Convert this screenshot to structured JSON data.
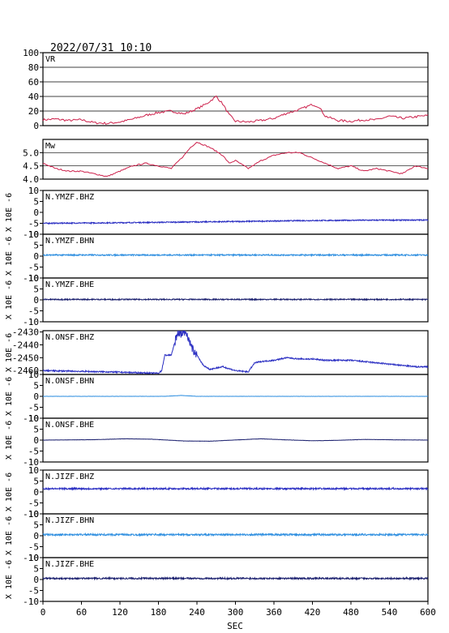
{
  "figure": {
    "timestamp": "2022/07/31 10:10",
    "xlabel": "SEC",
    "seismo_ylabel": "X 10E -6",
    "colors": {
      "vr": "#cc1f4a",
      "mw": "#cc1f4a",
      "blue": "#2a2ec2",
      "light_blue": "#2f8fe0",
      "navy": "#1a1f6e",
      "grid": "#000000"
    }
  },
  "chart_data": [
    {
      "type": "line",
      "label": "VR",
      "ylim": [
        0,
        100
      ],
      "yticks": [
        0,
        20,
        40,
        60,
        80,
        100
      ],
      "grid": true,
      "x": [
        0,
        20,
        40,
        60,
        80,
        100,
        120,
        140,
        160,
        180,
        200,
        220,
        240,
        255,
        270,
        280,
        290,
        300,
        320,
        340,
        360,
        380,
        400,
        420,
        430,
        440,
        460,
        480,
        500,
        520,
        540,
        560,
        580,
        600
      ],
      "values": [
        8,
        9,
        7,
        8,
        4,
        3,
        5,
        9,
        14,
        18,
        20,
        16,
        23,
        30,
        40,
        30,
        15,
        6,
        5,
        7,
        10,
        17,
        22,
        29,
        26,
        13,
        7,
        6,
        8,
        8,
        13,
        10,
        12,
        14
      ]
    },
    {
      "type": "line",
      "label": "Mw",
      "ylim": [
        4.0,
        5.5
      ],
      "yticks": [
        4.0,
        4.5,
        5.0
      ],
      "grid": true,
      "x": [
        0,
        20,
        40,
        60,
        80,
        100,
        120,
        140,
        160,
        180,
        200,
        220,
        230,
        240,
        260,
        280,
        290,
        300,
        320,
        340,
        360,
        380,
        400,
        420,
        440,
        460,
        480,
        500,
        520,
        540,
        560,
        580,
        600
      ],
      "values": [
        4.6,
        4.4,
        4.3,
        4.3,
        4.2,
        4.1,
        4.3,
        4.5,
        4.6,
        4.5,
        4.4,
        4.9,
        5.2,
        5.4,
        5.2,
        4.9,
        4.6,
        4.7,
        4.4,
        4.7,
        4.9,
        5.0,
        5.0,
        4.8,
        4.6,
        4.4,
        4.5,
        4.3,
        4.4,
        4.3,
        4.2,
        4.5,
        4.4
      ]
    },
    {
      "type": "line",
      "label": "N.YMZF.BHZ",
      "ylim": [
        -10,
        10
      ],
      "yticks": [
        -10,
        -5,
        0,
        5,
        10
      ],
      "color_key": "blue",
      "x": [
        0,
        100,
        200,
        300,
        400,
        500,
        600
      ],
      "values": [
        -5,
        -4.8,
        -4.5,
        -4.2,
        -3.8,
        -3.6,
        -3.5
      ],
      "noise": 0.25
    },
    {
      "type": "line",
      "label": "N.YMZF.BHN",
      "ylim": [
        -10,
        10
      ],
      "yticks": [
        -10,
        -5,
        0,
        5,
        10
      ],
      "color_key": "light_blue",
      "x": [
        0,
        600
      ],
      "values": [
        0.5,
        0.5
      ],
      "noise": 0.3
    },
    {
      "type": "line",
      "label": "N.YMZF.BHE",
      "ylim": [
        -10,
        10
      ],
      "yticks": [
        -10,
        -5,
        0,
        5,
        10
      ],
      "color_key": "navy",
      "x": [
        0,
        600
      ],
      "values": [
        0.2,
        0.2
      ],
      "noise": 0.25
    },
    {
      "type": "line",
      "label": "N.ONSF.BHZ",
      "ylim": [
        -2463,
        -2429
      ],
      "yticks": [
        -2460,
        -2450,
        -2440,
        -2430
      ],
      "color_key": "blue",
      "x": [
        0,
        100,
        170,
        180,
        185,
        190,
        200,
        210,
        215,
        220,
        225,
        230,
        235,
        240,
        250,
        260,
        270,
        280,
        300,
        320,
        330,
        340,
        360,
        380,
        400,
        420,
        440,
        460,
        480,
        500,
        520,
        540,
        560,
        580,
        600
      ],
      "values": [
        -2460,
        -2461,
        -2462,
        -2462,
        -2460,
        -2448,
        -2448,
        -2430,
        -2431,
        -2430,
        -2432,
        -2440,
        -2445,
        -2448,
        -2456,
        -2459,
        -2458,
        -2457,
        -2460,
        -2461,
        -2454,
        -2453,
        -2452,
        -2450,
        -2451,
        -2451,
        -2452,
        -2452,
        -2452,
        -2453,
        -2454,
        -2455,
        -2456,
        -2457,
        -2457
      ],
      "noise": 0.5
    },
    {
      "type": "line",
      "label": "N.ONSF.BHN",
      "ylim": [
        -10,
        10
      ],
      "yticks": [
        -10,
        -5,
        0,
        5,
        10
      ],
      "color_key": "light_blue",
      "x": [
        0,
        190,
        215,
        240,
        600
      ],
      "values": [
        0,
        0,
        0.4,
        0,
        0
      ],
      "noise": 0.05
    },
    {
      "type": "line",
      "label": "N.ONSF.BHE",
      "ylim": [
        -10,
        10
      ],
      "yticks": [
        -10,
        -5,
        0,
        5,
        10
      ],
      "color_key": "navy",
      "x": [
        0,
        80,
        130,
        170,
        220,
        260,
        310,
        340,
        380,
        420,
        460,
        500,
        560,
        600
      ],
      "values": [
        0,
        0.2,
        0.6,
        0.4,
        -0.4,
        -0.5,
        0.2,
        0.6,
        0.1,
        -0.3,
        -0.1,
        0.3,
        0.1,
        0
      ],
      "noise": 0.05
    },
    {
      "type": "line",
      "label": "N.JIZF.BHZ",
      "ylim": [
        -10,
        10
      ],
      "yticks": [
        -10,
        -5,
        0,
        5,
        10
      ],
      "color_key": "blue",
      "x": [
        0,
        600
      ],
      "values": [
        1.5,
        1.5
      ],
      "noise": 0.35
    },
    {
      "type": "line",
      "label": "N.JIZF.BHN",
      "ylim": [
        -10,
        10
      ],
      "yticks": [
        -10,
        -5,
        0,
        5,
        10
      ],
      "color_key": "light_blue",
      "x": [
        0,
        600
      ],
      "values": [
        0.5,
        0.5
      ],
      "noise": 0.4
    },
    {
      "type": "line",
      "label": "N.JIZF.BHE",
      "ylim": [
        -10,
        10
      ],
      "yticks": [
        -10,
        -5,
        0,
        5,
        10
      ],
      "color_key": "navy",
      "x": [
        0,
        600
      ],
      "values": [
        0.5,
        0.5
      ],
      "noise": 0.35
    }
  ],
  "x_axis": {
    "xlim": [
      0,
      600
    ],
    "ticks": [
      0,
      60,
      120,
      180,
      240,
      300,
      360,
      420,
      480,
      540,
      600
    ]
  }
}
